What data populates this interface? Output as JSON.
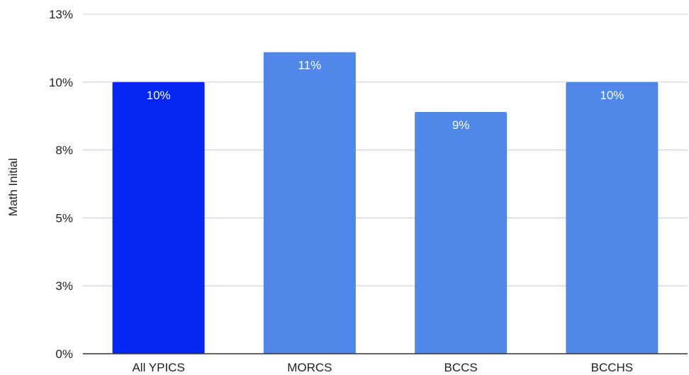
{
  "chart_data": {
    "type": "bar",
    "ylabel": "Math Initial",
    "xlabel": "",
    "categories": [
      "All YPICS",
      "MORCS",
      "BCCS",
      "BCCHS"
    ],
    "values": [
      10,
      11.1,
      8.9,
      10
    ],
    "data_labels": [
      "10%",
      "11%",
      "9%",
      "10%"
    ],
    "bar_colors": [
      "#0426f0",
      "#5087e9",
      "#5087e9",
      "#5087e9"
    ],
    "ylim": [
      0,
      12.5
    ],
    "yticks": [
      0,
      2.5,
      5,
      7.5,
      10,
      12.5
    ],
    "ytick_labels": [
      "0%",
      "3%",
      "5%",
      "8%",
      "10%",
      "13%"
    ],
    "grid": true,
    "gridline_color": "#cccccc",
    "axis_color": "#333333",
    "legend": "none"
  }
}
